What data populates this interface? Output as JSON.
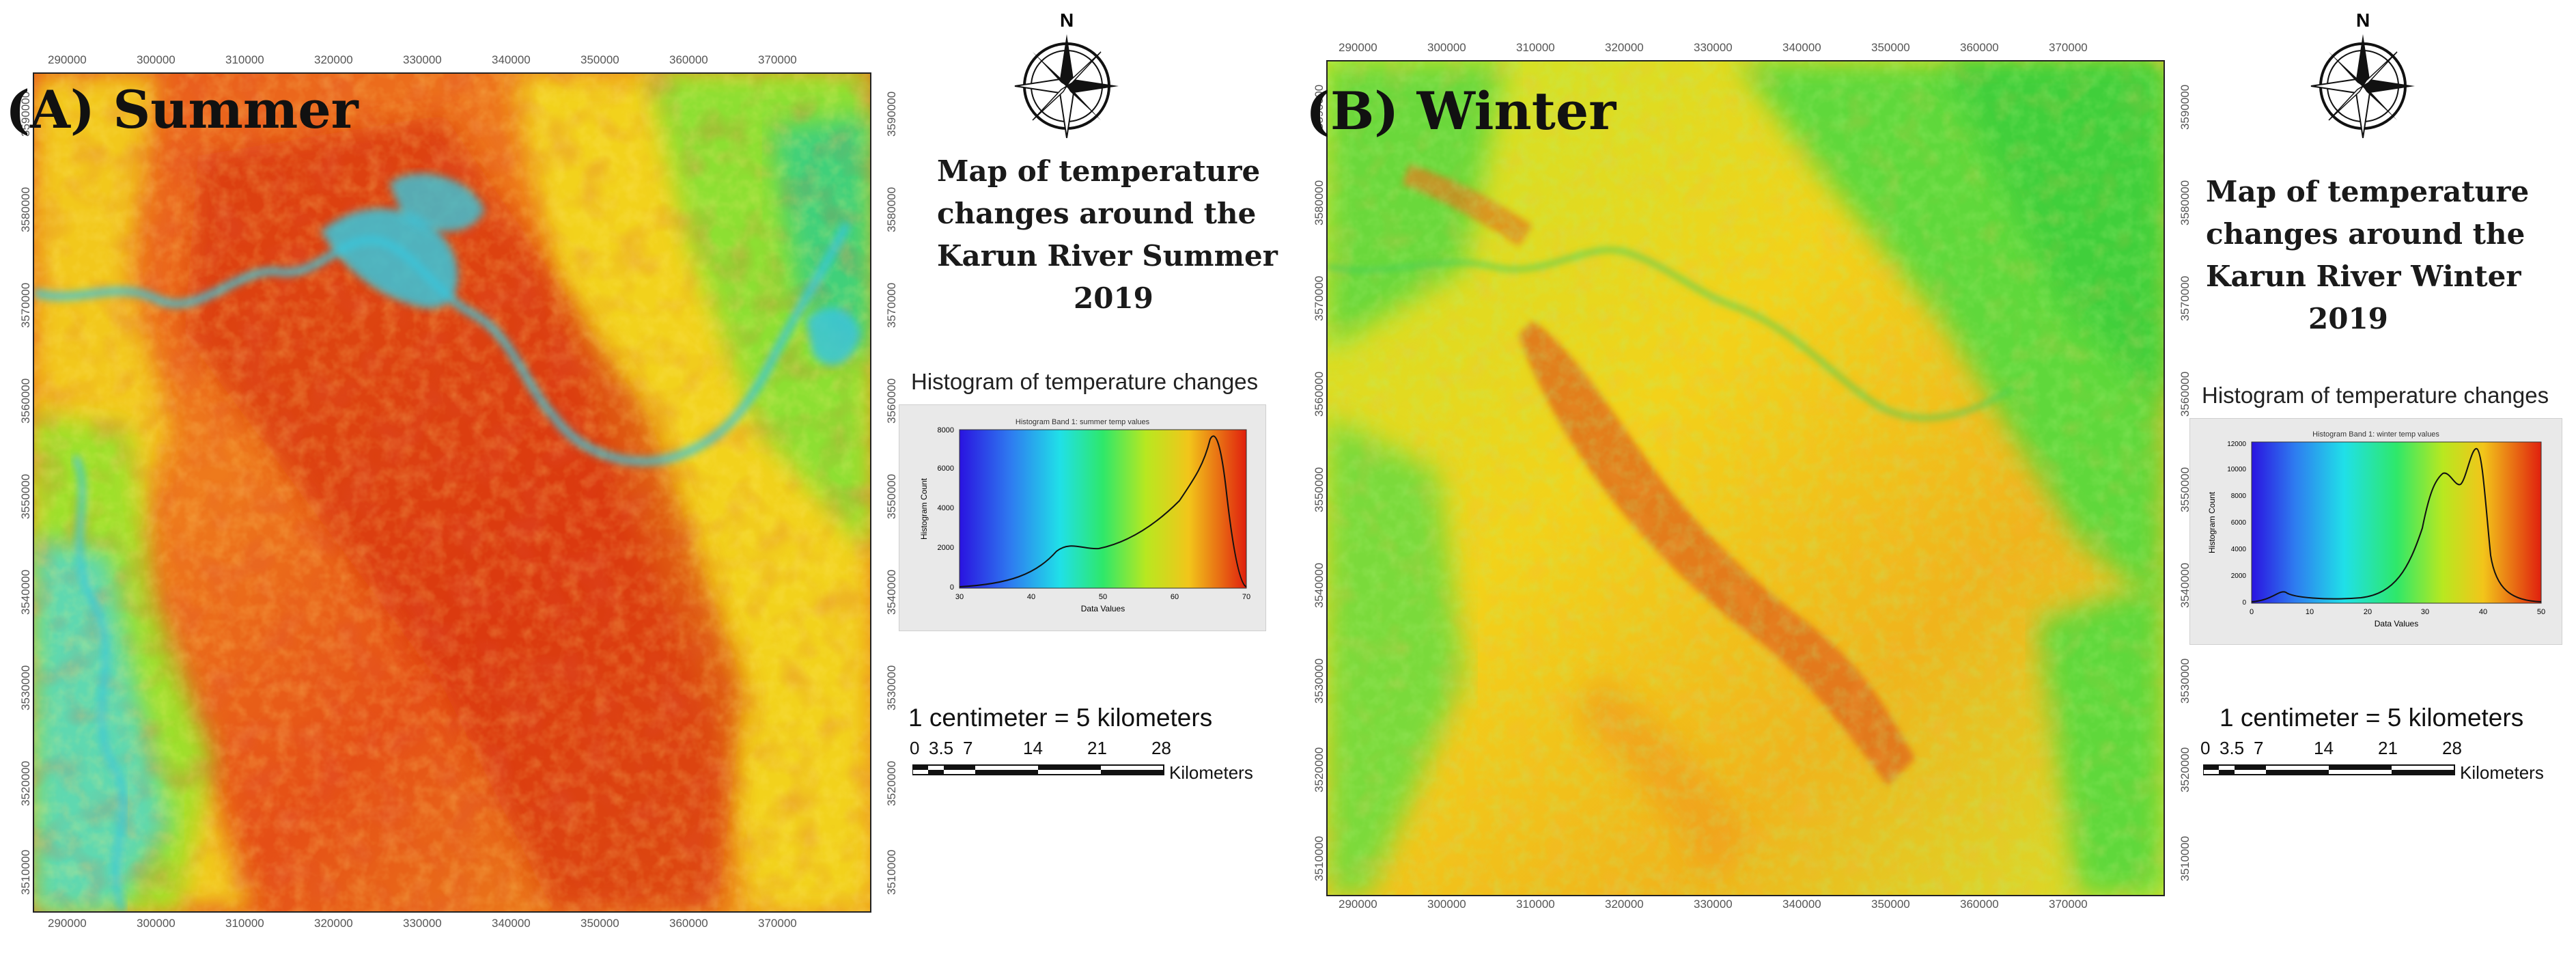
{
  "colors": {
    "hot": "#d92a10",
    "warm": "#f07a1a",
    "mild": "#f2d21a",
    "cool": "#8fe22c",
    "green": "#3fcf3a",
    "water": "#39c6dc"
  },
  "summer": {
    "label": "(A) Summer",
    "north": "N",
    "title_lines": [
      "Map of temperature",
      "changes around the",
      "Karun River Summer",
      "2019"
    ],
    "hist_caption": "Histogram of temperature changes",
    "hist_inner_title": "Histogram Band 1: summer temp values",
    "hist_ylabel": "Histogram Count",
    "hist_xlabel": "Data Values",
    "hist_yticks": [
      "0",
      "2000",
      "4000",
      "6000",
      "8000"
    ],
    "hist_xticks": [
      "30",
      "40",
      "50",
      "60",
      "70"
    ],
    "scale_text": "1 centimeter = 5 kilometers",
    "scale_ticks": [
      "0",
      "3.5",
      "7",
      "14",
      "21",
      "28"
    ],
    "scale_unit": "Kilometers",
    "x_ticks": [
      "290000",
      "300000",
      "310000",
      "320000",
      "330000",
      "340000",
      "350000",
      "360000",
      "370000"
    ],
    "y_ticks": [
      "3590000",
      "3580000",
      "3570000",
      "3560000",
      "3550000",
      "3540000",
      "3530000",
      "3520000",
      "3510000"
    ]
  },
  "winter": {
    "label": "(B) Winter",
    "north": "N",
    "title_lines": [
      "Map of temperature",
      "changes around the",
      "Karun River Winter",
      "2019"
    ],
    "hist_caption": "Histogram of temperature changes",
    "hist_inner_title": "Histogram Band 1: winter temp values",
    "hist_ylabel": "Histogram Count",
    "hist_xlabel": "Data Values",
    "hist_yticks": [
      "0",
      "2000",
      "4000",
      "6000",
      "8000",
      "10000",
      "12000"
    ],
    "hist_xticks": [
      "0",
      "10",
      "20",
      "30",
      "40",
      "50"
    ],
    "scale_text": "1 centimeter = 5 kilometers",
    "scale_ticks": [
      "0",
      "3.5",
      "7",
      "14",
      "21",
      "28"
    ],
    "scale_unit": "Kilometers",
    "x_ticks": [
      "290000",
      "300000",
      "310000",
      "320000",
      "330000",
      "340000",
      "350000",
      "360000",
      "370000"
    ],
    "y_ticks": [
      "3590000",
      "3580000",
      "3570000",
      "3560000",
      "3550000",
      "3540000",
      "3530000",
      "3520000",
      "3510000"
    ]
  }
}
